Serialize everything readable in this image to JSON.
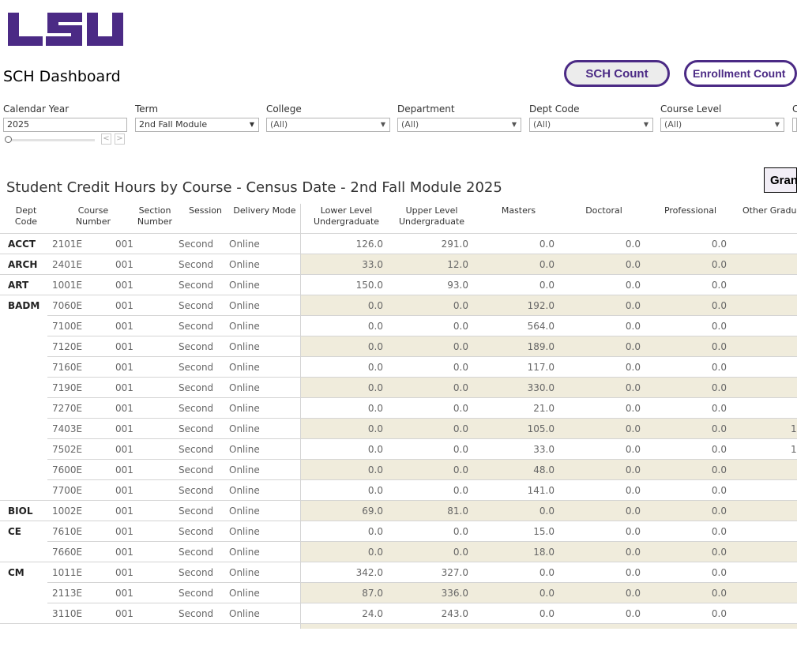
{
  "header": {
    "logo_text": "LSU",
    "title": "SCH Dashboard",
    "brand_color": "#4b2a85"
  },
  "buttons": {
    "sch": "SCH Count",
    "enrollment": "Enrollment Count",
    "grand": "Gran"
  },
  "filters": [
    {
      "label": "Calendar Year",
      "value": "2025"
    },
    {
      "label": "Term",
      "value": "2nd Fall Module"
    },
    {
      "label": "College",
      "value": "(All)"
    },
    {
      "label": "Department",
      "value": "(All)"
    },
    {
      "label": "Dept Code",
      "value": "(All)"
    },
    {
      "label": "Course Level",
      "value": "(All)"
    },
    {
      "label": "C",
      "value": ""
    }
  ],
  "table": {
    "title": "Student Credit Hours by Course - Census Date - 2nd Fall Module 2025",
    "columns": [
      "Dept\nCode",
      "Course\nNumber",
      "Section\nNumber",
      "Session",
      "Delivery Mode",
      "Lower Level\nUndergraduate",
      "Upper Level\nUndergraduate",
      "Masters",
      "Doctoral",
      "Professional",
      "Other Gradu"
    ],
    "band_color": "#f0ecdc",
    "rows": [
      [
        "ACCT",
        "2101E",
        "001",
        "Second",
        "Online",
        "126.0",
        "291.0",
        "0.0",
        "0.0",
        "0.0",
        ""
      ],
      [
        "ARCH",
        "2401E",
        "001",
        "Second",
        "Online",
        "33.0",
        "12.0",
        "0.0",
        "0.0",
        "0.0",
        ""
      ],
      [
        "ART",
        "1001E",
        "001",
        "Second",
        "Online",
        "150.0",
        "93.0",
        "0.0",
        "0.0",
        "0.0",
        ""
      ],
      [
        "BADM",
        "7060E",
        "001",
        "Second",
        "Online",
        "0.0",
        "0.0",
        "192.0",
        "0.0",
        "0.0",
        ""
      ],
      [
        "",
        "7100E",
        "001",
        "Second",
        "Online",
        "0.0",
        "0.0",
        "564.0",
        "0.0",
        "0.0",
        ""
      ],
      [
        "",
        "7120E",
        "001",
        "Second",
        "Online",
        "0.0",
        "0.0",
        "189.0",
        "0.0",
        "0.0",
        ""
      ],
      [
        "",
        "7160E",
        "001",
        "Second",
        "Online",
        "0.0",
        "0.0",
        "117.0",
        "0.0",
        "0.0",
        ""
      ],
      [
        "",
        "7190E",
        "001",
        "Second",
        "Online",
        "0.0",
        "0.0",
        "330.0",
        "0.0",
        "0.0",
        ""
      ],
      [
        "",
        "7270E",
        "001",
        "Second",
        "Online",
        "0.0",
        "0.0",
        "21.0",
        "0.0",
        "0.0",
        ""
      ],
      [
        "",
        "7403E",
        "001",
        "Second",
        "Online",
        "0.0",
        "0.0",
        "105.0",
        "0.0",
        "0.0",
        "1"
      ],
      [
        "",
        "7502E",
        "001",
        "Second",
        "Online",
        "0.0",
        "0.0",
        "33.0",
        "0.0",
        "0.0",
        "1"
      ],
      [
        "",
        "7600E",
        "001",
        "Second",
        "Online",
        "0.0",
        "0.0",
        "48.0",
        "0.0",
        "0.0",
        ""
      ],
      [
        "",
        "7700E",
        "001",
        "Second",
        "Online",
        "0.0",
        "0.0",
        "141.0",
        "0.0",
        "0.0",
        ""
      ],
      [
        "BIOL",
        "1002E",
        "001",
        "Second",
        "Online",
        "69.0",
        "81.0",
        "0.0",
        "0.0",
        "0.0",
        ""
      ],
      [
        "CE",
        "7610E",
        "001",
        "Second",
        "Online",
        "0.0",
        "0.0",
        "15.0",
        "0.0",
        "0.0",
        ""
      ],
      [
        "",
        "7660E",
        "001",
        "Second",
        "Online",
        "0.0",
        "0.0",
        "18.0",
        "0.0",
        "0.0",
        ""
      ],
      [
        "CM",
        "1011E",
        "001",
        "Second",
        "Online",
        "342.0",
        "327.0",
        "0.0",
        "0.0",
        "0.0",
        ""
      ],
      [
        "",
        "2113E",
        "001",
        "Second",
        "Online",
        "87.0",
        "336.0",
        "0.0",
        "0.0",
        "0.0",
        ""
      ],
      [
        "",
        "3110E",
        "001",
        "Second",
        "Online",
        "24.0",
        "243.0",
        "0.0",
        "0.0",
        "0.0",
        ""
      ]
    ]
  }
}
